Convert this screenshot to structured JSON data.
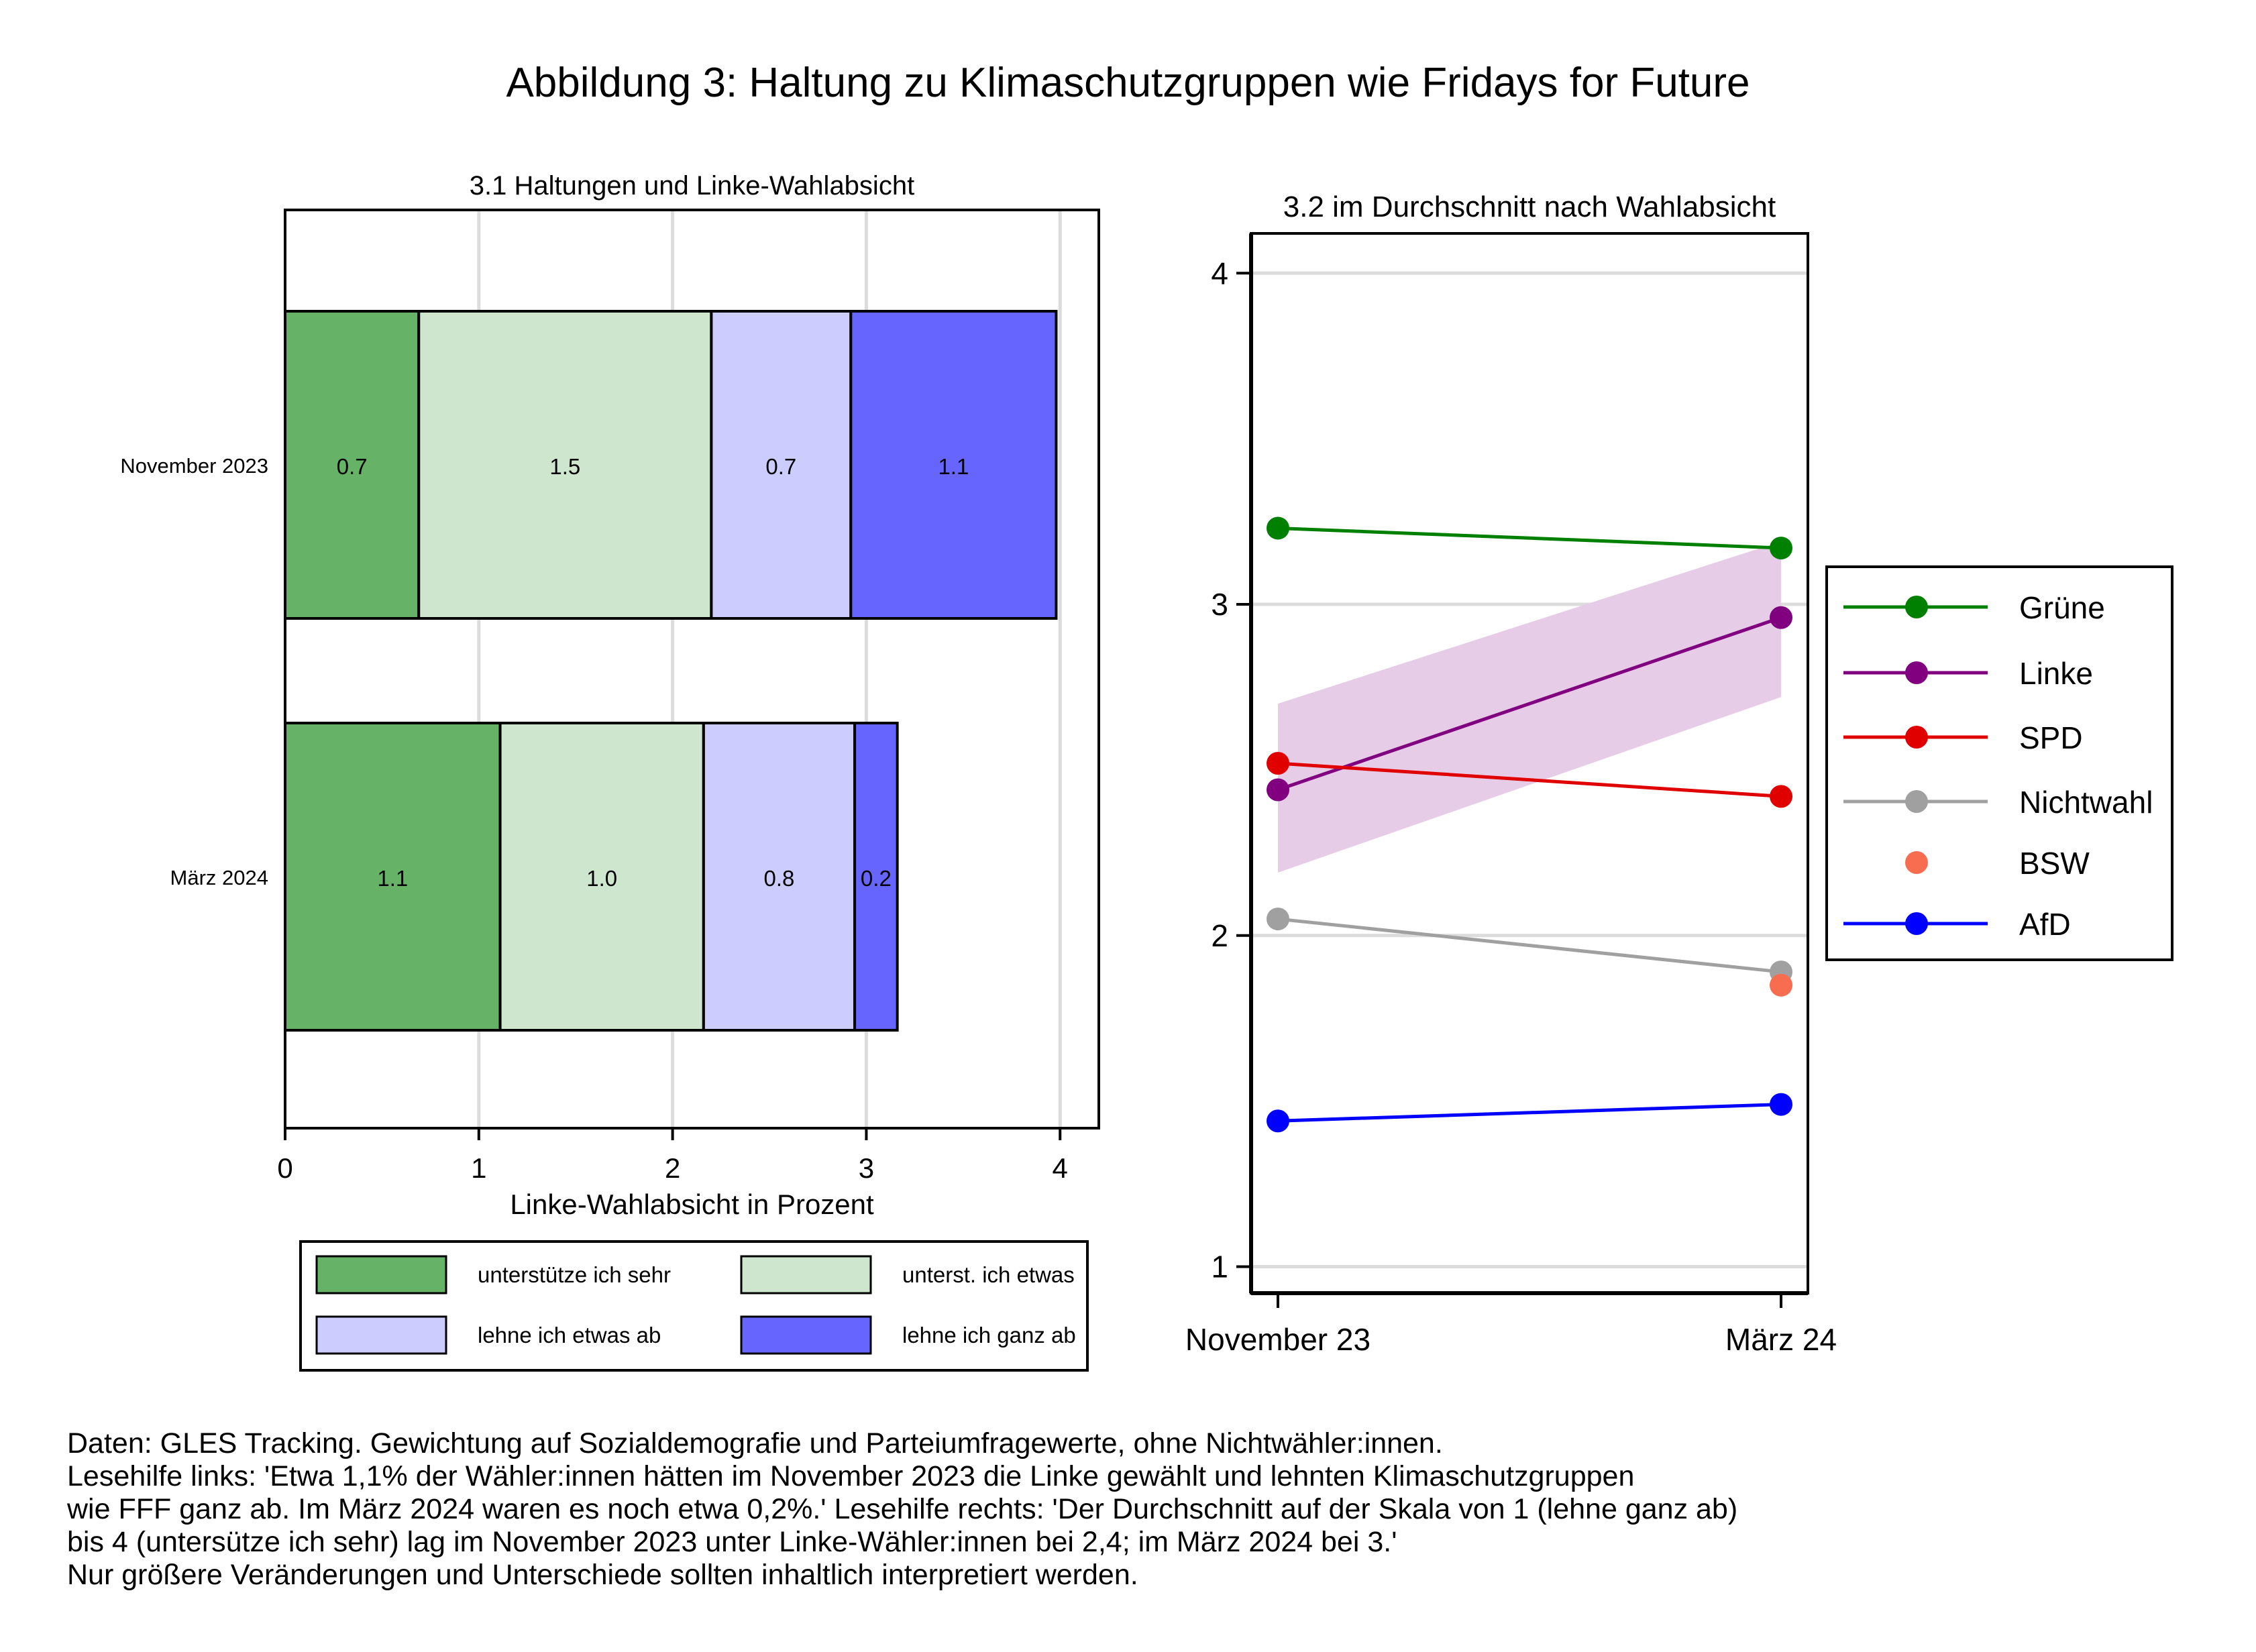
{
  "title": "Abbildung 3: Haltung zu Klimaschutzgruppen wie Fridays for Future",
  "notes": [
    "Daten: GLES Tracking. Gewichtung auf Sozialdemografie und Parteiumfragewerte, ohne Nichtwähler:innen.",
    "Lesehilfe links: 'Etwa 1,1% der Wähler:innen hätten im November 2023 die Linke gewählt und lehnten Klimaschutzgruppen",
    "wie FFF ganz ab. Im März 2024 waren es noch etwa 0,2%.' Lesehilfe rechts: 'Der Durchschnitt auf der Skala von 1 (lehne ganz ab)",
    "bis 4 (untersütze ich sehr) lag im November 2023 unter Linke-Wähler:innen bei 2,4; im März 2024 bei 3.'",
    "Nur größere Veränderungen und Unterschiede sollten inhaltlich interpretiert werden."
  ],
  "chart_data": [
    {
      "type": "bar",
      "orientation": "horizontal",
      "stacked": true,
      "title": "3.1 Haltungen und Linke-Wahlabsicht",
      "xlabel": "Linke-Wahlabsicht in Prozent",
      "ylabel": "",
      "xlim": [
        0,
        4.2
      ],
      "xticks": [
        "0",
        "1",
        "2",
        "3",
        "4"
      ],
      "grid": true,
      "legend_position": "bottom",
      "categories": [
        "November 2023",
        "März 2024"
      ],
      "series": [
        {
          "name": "unterstütze ich sehr",
          "color": "#66b266",
          "values": [
            0.69,
            1.11
          ],
          "labels": [
            "0.7",
            "1.1"
          ]
        },
        {
          "name": "unterst. ich etwas",
          "color": "#cde6cd",
          "values": [
            1.51,
            1.05
          ],
          "labels": [
            "1.5",
            "1.0"
          ]
        },
        {
          "name": "lehne ich etwas ab",
          "color": "#ccccff",
          "values": [
            0.72,
            0.78
          ],
          "labels": [
            "0.7",
            "0.8"
          ]
        },
        {
          "name": "lehne ich ganz ab",
          "color": "#6666ff",
          "values": [
            1.06,
            0.22
          ],
          "labels": [
            "1.1",
            "0.2"
          ]
        }
      ]
    },
    {
      "type": "line",
      "title": "3.2 im Durchschnitt nach Wahlabsicht",
      "xlabel": "",
      "ylabel": "",
      "x": [
        "November 23",
        "März 24"
      ],
      "ylim": [
        0.92,
        4.12
      ],
      "yticks": [
        "1",
        "2",
        "3",
        "4"
      ],
      "grid": true,
      "legend_position": "right",
      "band": {
        "series": "Linke",
        "color": "#e6cce6",
        "lower": [
          2.19,
          2.72
        ],
        "upper": [
          2.7,
          3.19
        ]
      },
      "series": [
        {
          "name": "Grüne",
          "color": "#008000",
          "values": [
            3.23,
            3.17
          ],
          "line": true
        },
        {
          "name": "Linke",
          "color": "#800080",
          "values": [
            2.44,
            2.96
          ],
          "line": true
        },
        {
          "name": "SPD",
          "color": "#e00000",
          "values": [
            2.52,
            2.42
          ],
          "line": true
        },
        {
          "name": "Nichtwahl",
          "color": "#a0a0a0",
          "values": [
            2.05,
            1.89
          ],
          "line": true
        },
        {
          "name": "BSW",
          "color": "#f86d4f",
          "values": [
            null,
            1.85
          ],
          "line": false
        },
        {
          "name": "AfD",
          "color": "#0000ff",
          "values": [
            1.44,
            1.49
          ],
          "line": true
        }
      ]
    }
  ]
}
